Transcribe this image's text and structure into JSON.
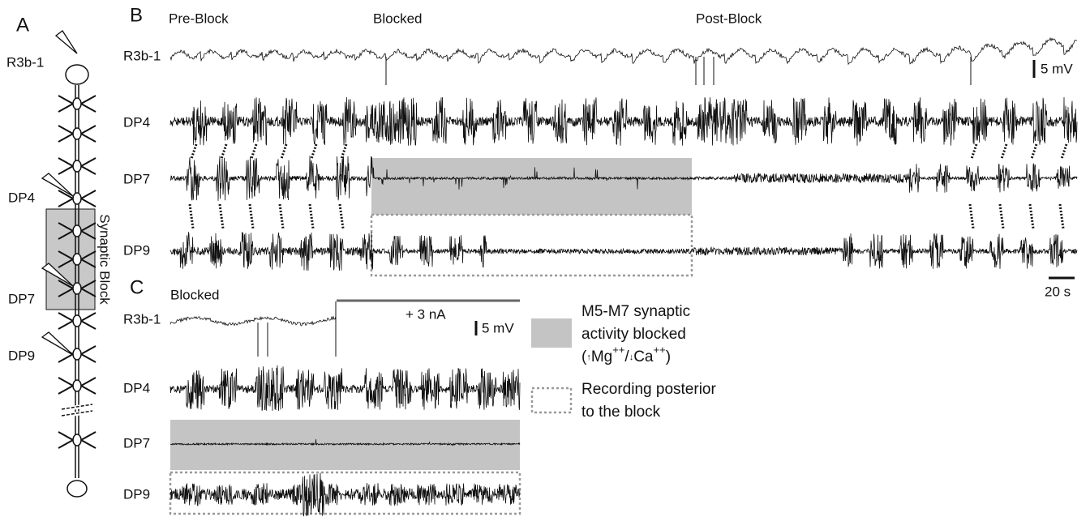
{
  "panel_a": {
    "label": "A",
    "electrodes": [
      "R3b-1",
      "DP4",
      "DP7",
      "DP9"
    ],
    "block_label": "Synaptic Block"
  },
  "panel_b": {
    "label": "B",
    "phases": [
      "Pre-Block",
      "Blocked",
      "Post-Block"
    ],
    "traces": [
      "R3b-1",
      "DP4",
      "DP7",
      "DP9"
    ],
    "voltage_scale": "5 mV",
    "time_scale": "20 s"
  },
  "panel_c": {
    "label": "C",
    "phase": "Blocked",
    "traces": [
      "R3b-1",
      "DP4",
      "DP7",
      "DP9"
    ],
    "current": "+ 3 nA",
    "voltage_scale": "5 mV"
  },
  "legend": {
    "blocked": {
      "lines": [
        "M5-M7 synaptic",
        "activity blocked"
      ],
      "condition": [
        "(",
        "↑",
        "Mg",
        "++",
        "/",
        "↓",
        "Ca",
        "++",
        ")"
      ]
    },
    "posterior": {
      "lines": [
        "Recording posterior",
        "to the block"
      ]
    }
  }
}
